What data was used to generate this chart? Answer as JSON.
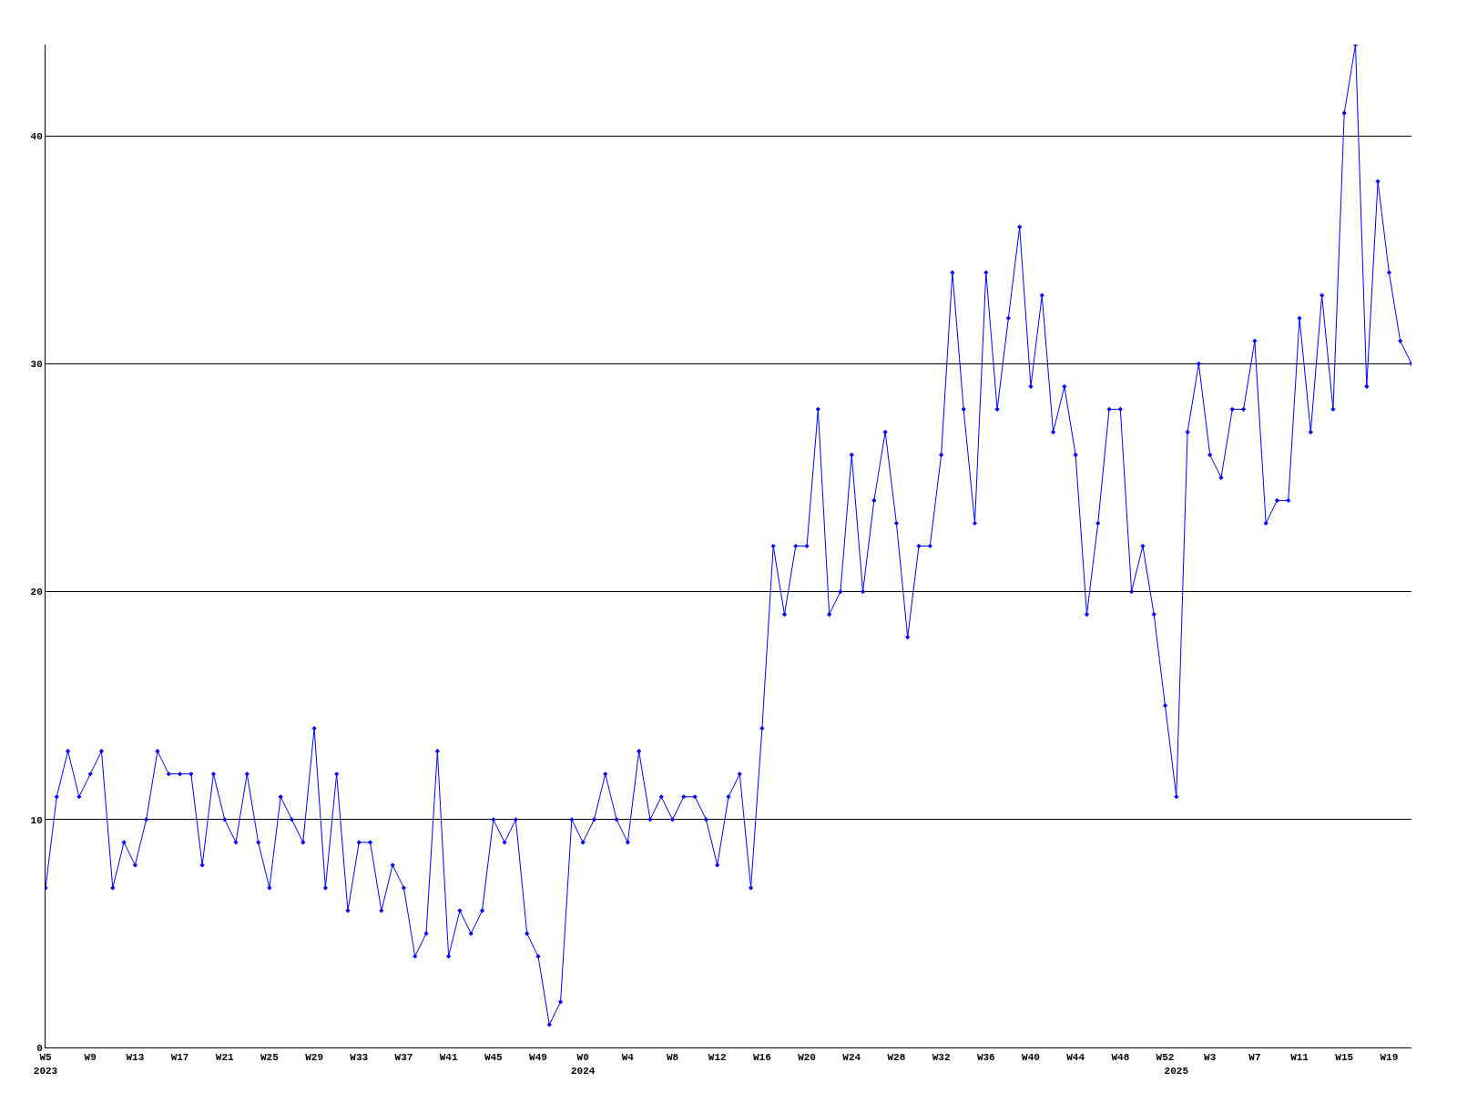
{
  "chart_data": {
    "type": "line",
    "categories": [
      "W5\n2023",
      null,
      null,
      null,
      "W9",
      null,
      null,
      null,
      "W13",
      null,
      null,
      null,
      "W17",
      null,
      null,
      null,
      "W21",
      null,
      null,
      null,
      "W25",
      null,
      null,
      null,
      "W29",
      null,
      null,
      null,
      "W33",
      null,
      null,
      null,
      "W37",
      null,
      null,
      null,
      "W41",
      null,
      null,
      null,
      "W45",
      null,
      null,
      null,
      "W49",
      null,
      null,
      null,
      "W0\n2024",
      null,
      null,
      null,
      "W4",
      null,
      null,
      null,
      "W8",
      null,
      null,
      null,
      "W12",
      null,
      null,
      null,
      "W16",
      null,
      null,
      null,
      "W20",
      null,
      null,
      null,
      "W24",
      null,
      null,
      null,
      "W28",
      null,
      null,
      null,
      "W32",
      null,
      null,
      null,
      "W36",
      null,
      null,
      null,
      "W40",
      null,
      null,
      null,
      "W44",
      null,
      null,
      null,
      "W48",
      null,
      null,
      null,
      "W52",
      "\n2025",
      null,
      null,
      "W3",
      null,
      null,
      null,
      "W7",
      null,
      null,
      null,
      "W11",
      null,
      null,
      null,
      "W15",
      null,
      null,
      null,
      "W19",
      null,
      null
    ],
    "series": [
      {
        "color": "#0000ff",
        "values": [
          7,
          11,
          13,
          11,
          12,
          13,
          7,
          9,
          8,
          10,
          13,
          12,
          12,
          12,
          8,
          12,
          10,
          9,
          12,
          9,
          7,
          11,
          10,
          9,
          14,
          7,
          12,
          6,
          9,
          9,
          6,
          8,
          7,
          4,
          5,
          13,
          4,
          6,
          5,
          6,
          10,
          9,
          10,
          5,
          4,
          1,
          2,
          10,
          9,
          10,
          12,
          10,
          9,
          13,
          10,
          11,
          10,
          11,
          11,
          10,
          8,
          11,
          12,
          7,
          14,
          22,
          19,
          22,
          22,
          28,
          19,
          20,
          26,
          20,
          24,
          27,
          23,
          18,
          22,
          22,
          26,
          34,
          28,
          23,
          34,
          28,
          32,
          36,
          29,
          33,
          27,
          29,
          26,
          19,
          23,
          28,
          28,
          20,
          22,
          19,
          15,
          11,
          27,
          30,
          26,
          25,
          28,
          28,
          31,
          23,
          24,
          24,
          32,
          27,
          33,
          28,
          41,
          44,
          29,
          38,
          34,
          31,
          30
        ]
      }
    ],
    "ylim": [
      0,
      44
    ],
    "yticks": [
      0,
      10,
      20,
      30,
      40
    ],
    "grid": "y",
    "marker": "diamond",
    "line_style": "solid"
  }
}
